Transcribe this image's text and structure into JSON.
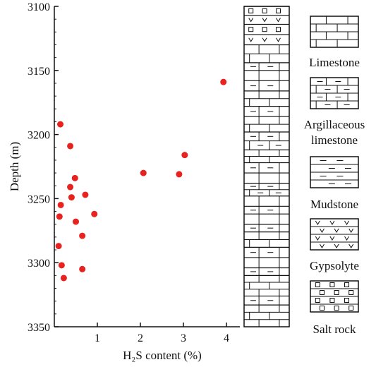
{
  "chart_data": {
    "type": "scatter",
    "xlabel": "H₂S content (%)",
    "ylabel": "Depth (m)",
    "xlim": [
      0,
      5
    ],
    "ylim": [
      3350,
      3100
    ],
    "y_inverted": true,
    "x_ticks": [
      1,
      2,
      3,
      4
    ],
    "y_ticks": [
      3100,
      3150,
      3200,
      3250,
      3300,
      3350
    ],
    "grid": false,
    "marker_color": "#e8221f",
    "points": [
      {
        "x": 3.93,
        "y": 3159
      },
      {
        "x": 0.14,
        "y": 3192
      },
      {
        "x": 0.37,
        "y": 3209
      },
      {
        "x": 3.03,
        "y": 3216
      },
      {
        "x": 2.07,
        "y": 3230
      },
      {
        "x": 2.9,
        "y": 3231
      },
      {
        "x": 0.48,
        "y": 3234
      },
      {
        "x": 0.37,
        "y": 3241
      },
      {
        "x": 0.72,
        "y": 3247
      },
      {
        "x": 0.4,
        "y": 3249
      },
      {
        "x": 0.15,
        "y": 3255
      },
      {
        "x": 0.93,
        "y": 3262
      },
      {
        "x": 0.12,
        "y": 3264
      },
      {
        "x": 0.5,
        "y": 3268
      },
      {
        "x": 0.65,
        "y": 3279
      },
      {
        "x": 0.1,
        "y": 3287
      },
      {
        "x": 0.17,
        "y": 3302
      },
      {
        "x": 0.65,
        "y": 3305
      },
      {
        "x": 0.22,
        "y": 3312
      }
    ]
  },
  "lithology_column": {
    "top_depth": 3100,
    "bottom_depth": 3350,
    "intervals": [
      {
        "top": 3100,
        "bottom": 3107,
        "pattern": "salt"
      },
      {
        "top": 3107,
        "bottom": 3114,
        "pattern": "gypsum"
      },
      {
        "top": 3114,
        "bottom": 3122,
        "pattern": "salt"
      },
      {
        "top": 3122,
        "bottom": 3130,
        "pattern": "gypsum"
      },
      {
        "top": 3130,
        "bottom": 3144,
        "pattern": "limestone"
      },
      {
        "top": 3144,
        "bottom": 3150,
        "pattern": "argillaceous"
      },
      {
        "top": 3150,
        "bottom": 3158,
        "pattern": "limestone"
      },
      {
        "top": 3158,
        "bottom": 3166,
        "pattern": "argillaceous"
      },
      {
        "top": 3166,
        "bottom": 3178,
        "pattern": "limestone"
      },
      {
        "top": 3178,
        "bottom": 3186,
        "pattern": "argillaceous"
      },
      {
        "top": 3186,
        "bottom": 3198,
        "pattern": "limestone"
      },
      {
        "top": 3198,
        "bottom": 3212,
        "pattern": "argillaceous"
      },
      {
        "top": 3212,
        "bottom": 3222,
        "pattern": "limestone"
      },
      {
        "top": 3222,
        "bottom": 3230,
        "pattern": "argillaceous"
      },
      {
        "top": 3230,
        "bottom": 3238,
        "pattern": "limestone"
      },
      {
        "top": 3238,
        "bottom": 3248,
        "pattern": "argillaceous"
      },
      {
        "top": 3248,
        "bottom": 3256,
        "pattern": "limestone"
      },
      {
        "top": 3256,
        "bottom": 3262,
        "pattern": "argillaceous"
      },
      {
        "top": 3262,
        "bottom": 3270,
        "pattern": "limestone"
      },
      {
        "top": 3270,
        "bottom": 3276,
        "pattern": "argillaceous"
      },
      {
        "top": 3276,
        "bottom": 3288,
        "pattern": "limestone"
      },
      {
        "top": 3288,
        "bottom": 3296,
        "pattern": "argillaceous"
      },
      {
        "top": 3296,
        "bottom": 3304,
        "pattern": "limestone"
      },
      {
        "top": 3304,
        "bottom": 3310,
        "pattern": "argillaceous"
      },
      {
        "top": 3310,
        "bottom": 3326,
        "pattern": "limestone"
      },
      {
        "top": 3326,
        "bottom": 3333,
        "pattern": "argillaceous"
      },
      {
        "top": 3333,
        "bottom": 3350,
        "pattern": "limestone"
      }
    ]
  },
  "legend": [
    {
      "label": "Limestone",
      "pattern": "limestone"
    },
    {
      "label": "Argillaceous limestone",
      "pattern": "argillaceous"
    },
    {
      "label": "Mudstone",
      "pattern": "mudstone"
    },
    {
      "label": "Gypsolyte",
      "pattern": "gypsum"
    },
    {
      "label": "Salt rock",
      "pattern": "salt"
    }
  ]
}
